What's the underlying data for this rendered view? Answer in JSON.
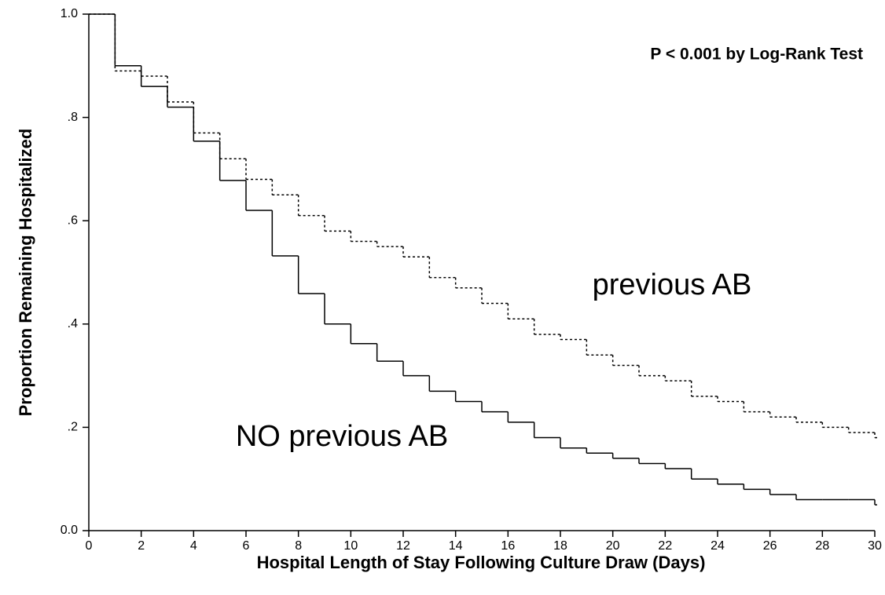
{
  "chart_data": {
    "type": "step",
    "annotation": "P < 0.001 by Log-Rank Test",
    "x_label": "Hospital Length of Stay Following Culture Draw (Days)",
    "y_label": "Proportion Remaining Hospitalized",
    "x": [
      0,
      1,
      2,
      3,
      4,
      5,
      6,
      7,
      8,
      9,
      10,
      11,
      12,
      13,
      14,
      15,
      16,
      17,
      18,
      19,
      20,
      21,
      22,
      23,
      24,
      25,
      26,
      27,
      28,
      29,
      30
    ],
    "series": [
      {
        "name": "NO previous AB",
        "color": "#000000",
        "dash": false,
        "values": [
          1.0,
          0.9,
          0.86,
          0.82,
          0.754,
          0.678,
          0.62,
          0.532,
          0.459,
          0.4,
          0.362,
          0.328,
          0.3,
          0.27,
          0.25,
          0.23,
          0.21,
          0.18,
          0.16,
          0.15,
          0.14,
          0.13,
          0.12,
          0.1,
          0.09,
          0.08,
          0.07,
          0.06,
          0.06,
          0.06,
          0.05
        ]
      },
      {
        "name": "previous AB",
        "color": "#000000",
        "dash": true,
        "values": [
          1.0,
          0.89,
          0.88,
          0.83,
          0.77,
          0.72,
          0.68,
          0.65,
          0.61,
          0.58,
          0.56,
          0.55,
          0.53,
          0.49,
          0.47,
          0.44,
          0.41,
          0.38,
          0.37,
          0.34,
          0.32,
          0.3,
          0.29,
          0.26,
          0.25,
          0.23,
          0.22,
          0.21,
          0.2,
          0.19,
          0.18
        ]
      }
    ],
    "xlim": [
      0,
      30
    ],
    "ylim": [
      0,
      1
    ],
    "xticks": [
      0,
      2,
      4,
      6,
      8,
      10,
      12,
      14,
      16,
      18,
      20,
      22,
      24,
      26,
      28,
      30
    ],
    "yticks": [
      {
        "value": 0,
        "label": "0.0"
      },
      {
        "value": 0.2,
        "label": ".2"
      },
      {
        "value": 0.4,
        "label": ".4"
      },
      {
        "value": 0.6,
        "label": ".6"
      },
      {
        "value": 0.8,
        "label": ".8"
      },
      {
        "value": 1,
        "label": "1.0"
      }
    ],
    "grid": false
  }
}
